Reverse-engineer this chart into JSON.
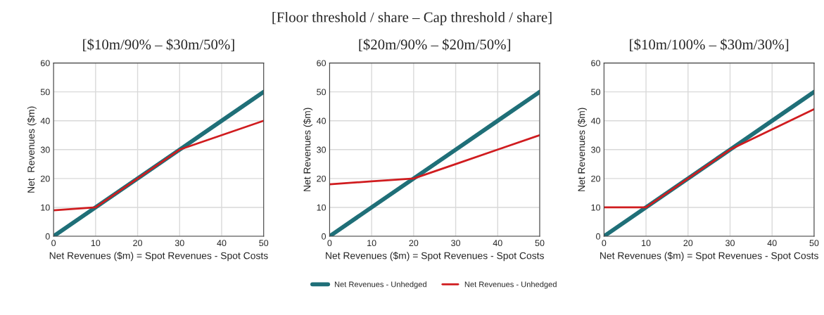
{
  "chart_data": [
    {
      "type": "line",
      "title": "[$10m/90% – $30m/50%]",
      "xlabel": "Net Revenues ($m) = Spot Revenues - Spot Costs",
      "ylabel": "Net  Revenues ($m)",
      "x": [
        0,
        10,
        20,
        30,
        40,
        50
      ],
      "xlim": [
        0,
        50
      ],
      "ylim": [
        0,
        60
      ],
      "xticks": [
        0,
        10,
        20,
        30,
        40,
        50
      ],
      "yticks": [
        0,
        10,
        20,
        30,
        40,
        50,
        60
      ],
      "grid": true,
      "series": [
        {
          "color": "#1f6f78",
          "values": [
            0,
            10,
            20,
            30,
            40,
            50
          ]
        },
        {
          "color": "#d01c1f",
          "values": [
            9,
            10,
            20,
            30,
            35,
            40
          ]
        }
      ]
    },
    {
      "type": "line",
      "title": "[$20m/90% – $20m/50%]",
      "annotations": [
        "[Floor threshold / share – Cap threshold / share]"
      ],
      "xlabel": "Net Revenues ($m) = Spot Revenues - Spot Costs",
      "ylabel": "Net Revenues ($m)",
      "x": [
        0,
        10,
        20,
        30,
        40,
        50
      ],
      "xlim": [
        0,
        50
      ],
      "ylim": [
        0,
        60
      ],
      "xticks": [
        0,
        10,
        20,
        30,
        40,
        50
      ],
      "yticks": [
        0,
        10,
        20,
        30,
        40,
        50,
        60
      ],
      "grid": true,
      "legend": "bottom",
      "series": [
        {
          "name": "Net Revenues - Unhedged",
          "color": "#1f6f78",
          "values": [
            0,
            10,
            20,
            30,
            40,
            50
          ]
        },
        {
          "name": "Net Revenues - Unhedged",
          "color": "#d01c1f",
          "values": [
            18,
            19,
            20,
            25,
            30,
            35
          ]
        }
      ]
    },
    {
      "type": "line",
      "title": "[$10m/100% – $30m/30%]",
      "xlabel": "Net Revenues ($m) = Spot Revenues - Spot Costs",
      "ylabel": "Net Revenues ($m)",
      "x": [
        0,
        10,
        20,
        30,
        40,
        50
      ],
      "xlim": [
        0,
        50
      ],
      "ylim": [
        0,
        60
      ],
      "xticks": [
        0,
        10,
        20,
        30,
        40,
        50
      ],
      "yticks": [
        0,
        10,
        20,
        30,
        40,
        50,
        60
      ],
      "grid": true,
      "series": [
        {
          "color": "#1f6f78",
          "values": [
            0,
            10,
            20,
            30,
            40,
            50
          ]
        },
        {
          "color": "#d01c1f",
          "values": [
            10,
            10,
            20,
            30,
            37,
            44
          ]
        }
      ]
    }
  ]
}
